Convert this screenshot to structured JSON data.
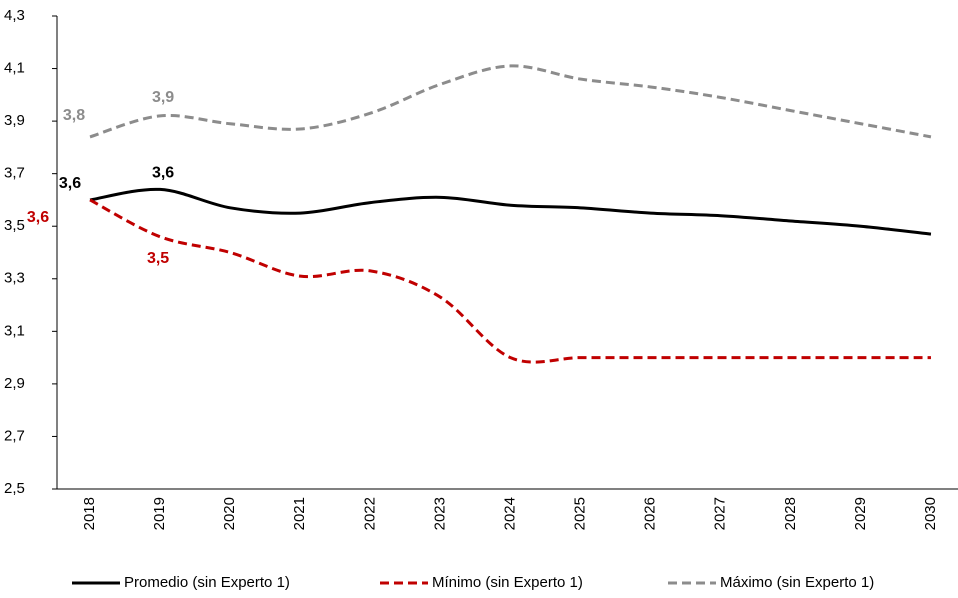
{
  "chart_data": {
    "type": "line",
    "categories": [
      "2018",
      "2019",
      "2020",
      "2021",
      "2022",
      "2023",
      "2024",
      "2025",
      "2026",
      "2027",
      "2028",
      "2029",
      "2030"
    ],
    "series": [
      {
        "name": "Promedio (sin Experto 1)",
        "color": "#000000",
        "dash": "solid",
        "values": [
          3.6,
          3.64,
          3.57,
          3.55,
          3.59,
          3.61,
          3.58,
          3.57,
          3.55,
          3.54,
          3.52,
          3.5,
          3.47
        ],
        "value_labels": [
          "3,6",
          "3,6",
          null,
          null,
          null,
          null,
          null,
          null,
          null,
          null,
          null,
          null,
          null
        ]
      },
      {
        "name": "Mínimo (sin Experto 1)",
        "color": "#c00000",
        "dash": "dashed",
        "values": [
          3.6,
          3.46,
          3.4,
          3.31,
          3.33,
          3.23,
          3.0,
          3.0,
          3.0,
          3.0,
          3.0,
          3.0,
          3.0
        ],
        "value_labels": [
          "3,6",
          "3,5",
          null,
          null,
          null,
          null,
          null,
          null,
          null,
          null,
          null,
          null,
          null
        ]
      },
      {
        "name": "Máximo (sin Experto 1)",
        "color": "#8c8c8c",
        "dash": "dashed",
        "values": [
          3.84,
          3.92,
          3.89,
          3.87,
          3.93,
          4.04,
          4.11,
          4.06,
          4.03,
          3.99,
          3.94,
          3.89,
          3.84
        ],
        "value_labels": [
          "3,8",
          "3,9",
          null,
          null,
          null,
          null,
          null,
          null,
          null,
          null,
          null,
          null,
          null
        ]
      }
    ],
    "ylim": [
      2.5,
      4.3
    ],
    "yticks": [
      {
        "value": 2.5,
        "label": "2,5"
      },
      {
        "value": 2.7,
        "label": "2,7"
      },
      {
        "value": 2.9,
        "label": "2,9"
      },
      {
        "value": 3.1,
        "label": "3,1"
      },
      {
        "value": 3.3,
        "label": "3,3"
      },
      {
        "value": 3.5,
        "label": "3,5"
      },
      {
        "value": 3.7,
        "label": "3,7"
      },
      {
        "value": 3.9,
        "label": "3,9"
      },
      {
        "value": 4.1,
        "label": "4,1"
      },
      {
        "value": 4.3,
        "label": "4,3"
      }
    ],
    "grid": false,
    "legend": "bottom"
  }
}
